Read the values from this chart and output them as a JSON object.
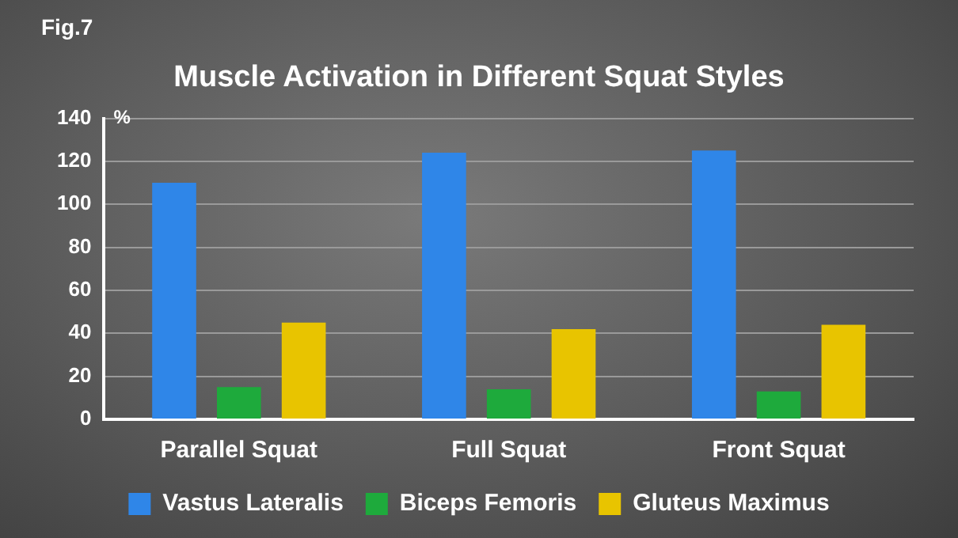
{
  "chart_data": {
    "type": "bar",
    "title": "Muscle Activation in Different Squat Styles",
    "ylabel": "%",
    "annotations": [
      "Fig.7"
    ],
    "categories": [
      "Parallel Squat",
      "Full Squat",
      "Front Squat"
    ],
    "series": [
      {
        "name": "Vastus Lateralis",
        "color": "#2f86e8",
        "values": [
          110,
          124,
          125
        ]
      },
      {
        "name": "Biceps Femoris",
        "color": "#1eaa3c",
        "values": [
          15,
          14,
          13
        ]
      },
      {
        "name": "Gluteus Maximus",
        "color": "#e8c400",
        "values": [
          45,
          42,
          44
        ]
      }
    ],
    "ylim": [
      0,
      140
    ],
    "yticks": [
      0,
      20,
      40,
      60,
      80,
      100,
      120,
      140
    ],
    "grid": "y",
    "legend": "bottom"
  }
}
